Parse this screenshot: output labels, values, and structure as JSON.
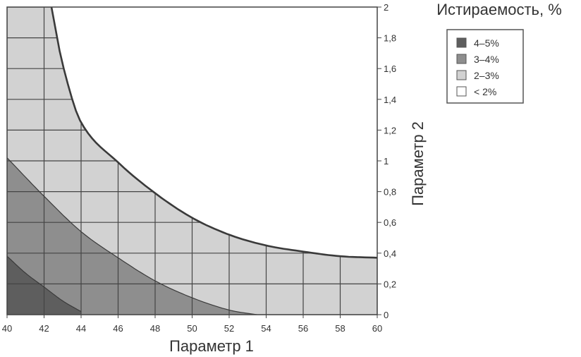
{
  "chart_data": {
    "type": "area",
    "title": "Истираемость, %",
    "xlabel": "Параметр 1",
    "ylabel": "Параметр 2",
    "xlim": [
      40,
      60
    ],
    "ylim": [
      0,
      2
    ],
    "x_ticks": [
      "40",
      "42",
      "44",
      "46",
      "48",
      "50",
      "52",
      "54",
      "56",
      "58",
      "60"
    ],
    "y_ticks": [
      "0",
      "0,2",
      "0,4",
      "0,6",
      "0,8",
      "1",
      "1,2",
      "1,4",
      "1,6",
      "1,8",
      "2"
    ],
    "grid": true,
    "y_axis_side": "right",
    "legend": {
      "position": "top-right",
      "entries": [
        {
          "label": "4–5%",
          "color": "#5e5e5e"
        },
        {
          "label": "3–4%",
          "color": "#8e8e8e"
        },
        {
          "label": "2–3%",
          "color": "#d2d2d2"
        },
        {
          "label": "< 2%",
          "color": "#ffffff"
        }
      ]
    },
    "series": [
      {
        "name": "4–5%",
        "boundary": {
          "x": [
            40,
            41,
            42,
            43,
            44
          ],
          "y": [
            0.38,
            0.27,
            0.18,
            0.09,
            0.02
          ]
        }
      },
      {
        "name": "3–4%",
        "boundary": {
          "x": [
            40,
            42,
            44,
            46,
            48,
            50,
            52,
            53.5
          ],
          "y": [
            1.02,
            0.77,
            0.54,
            0.37,
            0.22,
            0.11,
            0.03,
            0
          ]
        }
      },
      {
        "name": "2–3%",
        "boundary": {
          "x": [
            42.4,
            43,
            44,
            46,
            48,
            50,
            52,
            54,
            56,
            58,
            60
          ],
          "y": [
            2,
            1.63,
            1.25,
            0.99,
            0.79,
            0.63,
            0.52,
            0.45,
            0.41,
            0.38,
            0.37
          ]
        }
      }
    ]
  }
}
